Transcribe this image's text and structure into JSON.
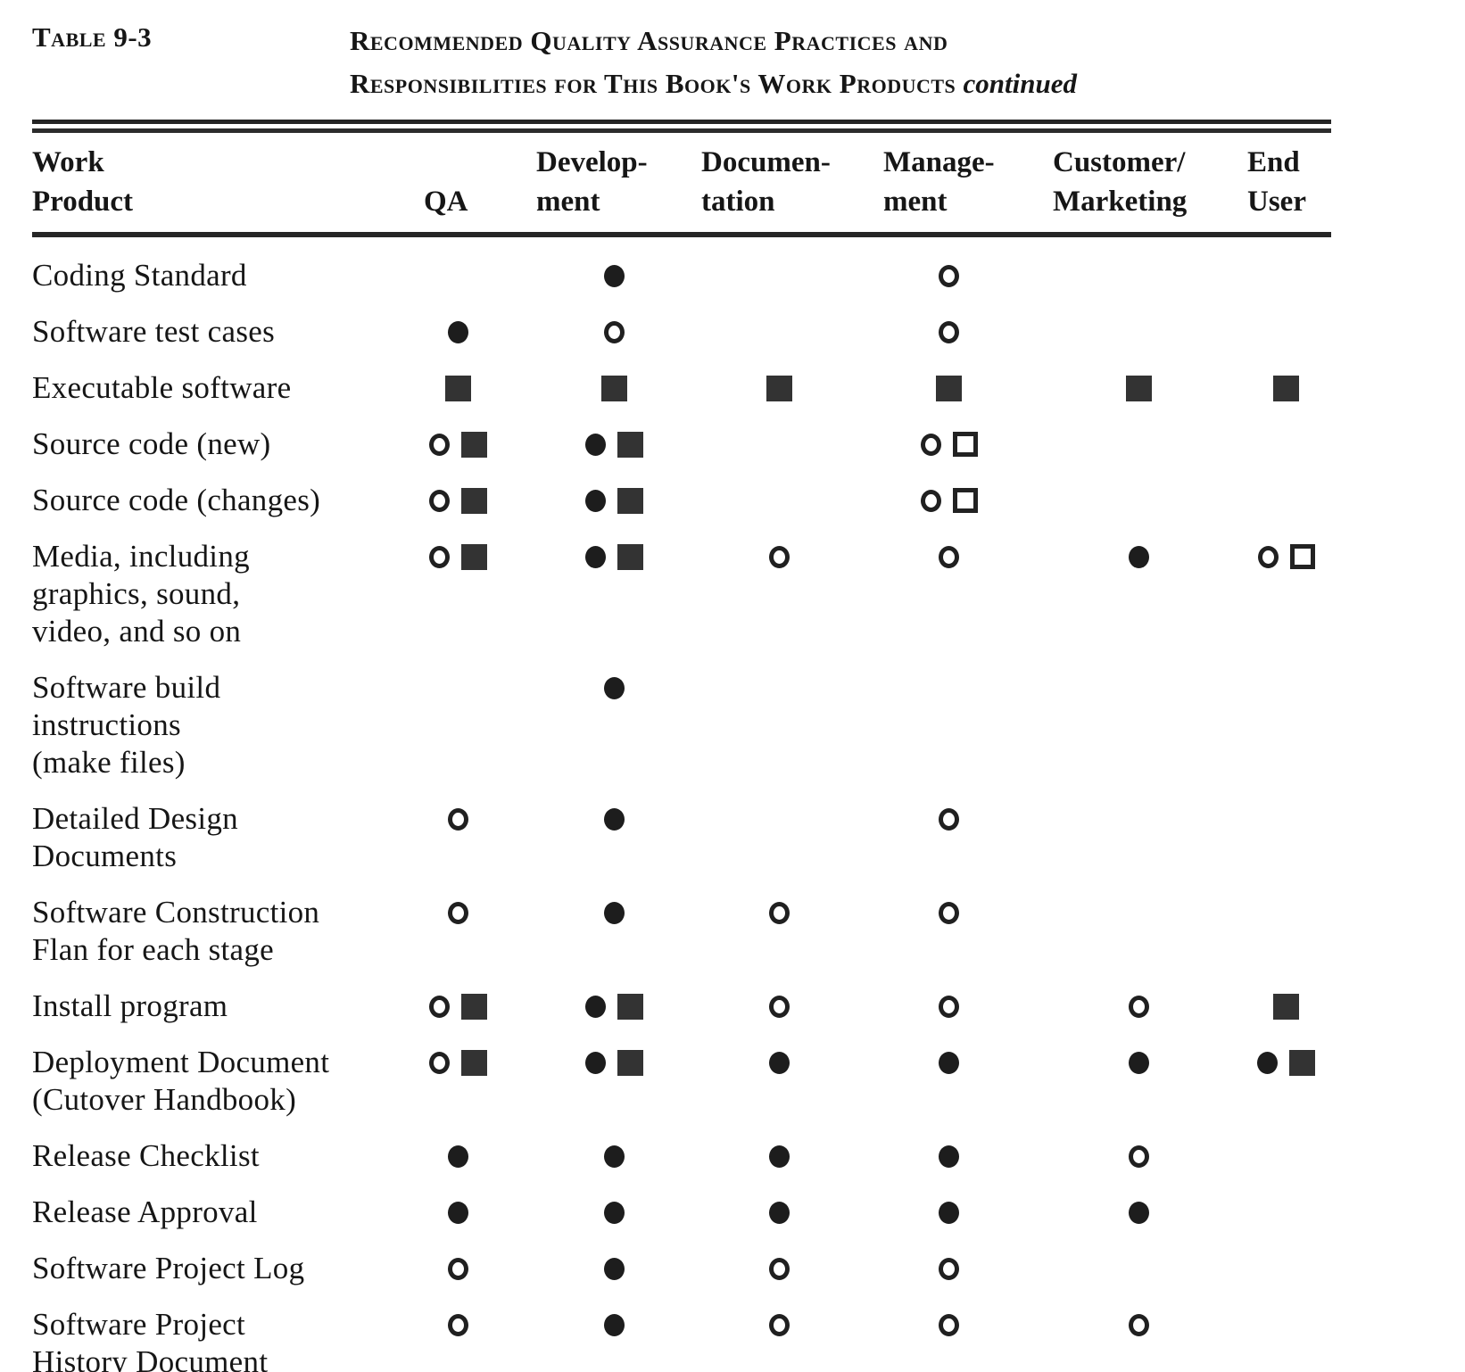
{
  "page": {
    "table_label": "Table 9-3",
    "title_line1": "Recommended Quality Assurance Practices and",
    "title_line2": "Responsibilities for This Book's Work Products",
    "title_emphasis": "continued"
  },
  "table": {
    "headers": [
      {
        "id": "work-product",
        "label": "Work\nProduct"
      },
      {
        "id": "qa",
        "label": "QA"
      },
      {
        "id": "development",
        "label": "Develop-\nment"
      },
      {
        "id": "documentation",
        "label": "Documen-\ntation"
      },
      {
        "id": "management",
        "label": "Manage-\nment"
      },
      {
        "id": "customer-marketing",
        "label": "Customer/\nMarketing"
      },
      {
        "id": "end-user",
        "label": "End\nUser"
      }
    ],
    "symbol_legend": {
      "filled-circle": "●",
      "open-circle": "○",
      "filled-square": "■",
      "open-square": "□"
    },
    "rows": [
      {
        "work_product": "Coding Standard",
        "cells": [
          [],
          [
            "filled-circle"
          ],
          [],
          [
            "open-circle"
          ],
          [],
          []
        ]
      },
      {
        "work_product": "Software test cases",
        "cells": [
          [
            "filled-circle"
          ],
          [
            "open-circle"
          ],
          [],
          [
            "open-circle"
          ],
          [],
          []
        ]
      },
      {
        "work_product": "Executable software",
        "cells": [
          [
            "filled-square"
          ],
          [
            "filled-square"
          ],
          [
            "filled-square"
          ],
          [
            "filled-square"
          ],
          [
            "filled-square"
          ],
          [
            "filled-square"
          ]
        ]
      },
      {
        "work_product": "Source code (new)",
        "cells": [
          [
            "open-circle",
            "filled-square"
          ],
          [
            "filled-circle",
            "filled-square"
          ],
          [],
          [
            "open-circle",
            "open-square"
          ],
          [],
          []
        ]
      },
      {
        "work_product": "Source code (changes)",
        "cells": [
          [
            "open-circle",
            "filled-square"
          ],
          [
            "filled-circle",
            "filled-square"
          ],
          [],
          [
            "open-circle",
            "open-square"
          ],
          [],
          []
        ]
      },
      {
        "work_product": "Media, including\ngraphics, sound,\nvideo, and so on",
        "cells": [
          [
            "open-circle",
            "filled-square"
          ],
          [
            "filled-circle",
            "filled-square"
          ],
          [
            "open-circle"
          ],
          [
            "open-circle"
          ],
          [
            "filled-circle"
          ],
          [
            "open-circle",
            "open-square"
          ]
        ]
      },
      {
        "work_product": "Software  build\ninstructions\n(make files)",
        "cells": [
          [],
          [
            "filled-circle"
          ],
          [],
          [],
          [],
          []
        ]
      },
      {
        "work_product": "Detailed Design\nDocuments",
        "cells": [
          [
            "open-circle"
          ],
          [
            "filled-circle"
          ],
          [],
          [
            "open-circle"
          ],
          [],
          []
        ]
      },
      {
        "work_product": "Software  Construction\nFlan for each stage",
        "cells": [
          [
            "open-circle"
          ],
          [
            "filled-circle"
          ],
          [
            "open-circle"
          ],
          [
            "open-circle"
          ],
          [],
          []
        ]
      },
      {
        "work_product": "Install program",
        "cells": [
          [
            "open-circle",
            "filled-square"
          ],
          [
            "filled-circle",
            "filled-square"
          ],
          [
            "open-circle"
          ],
          [
            "open-circle"
          ],
          [
            "open-circle"
          ],
          [
            "filled-square"
          ]
        ]
      },
      {
        "work_product": "Deployment Document\n(Cutover  Handbook)",
        "cells": [
          [
            "open-circle",
            "filled-square"
          ],
          [
            "filled-circle",
            "filled-square"
          ],
          [
            "filled-circle"
          ],
          [
            "filled-circle"
          ],
          [
            "filled-circle"
          ],
          [
            "filled-circle",
            "filled-square"
          ]
        ]
      },
      {
        "work_product": "Release  Checklist",
        "cells": [
          [
            "filled-circle"
          ],
          [
            "filled-circle"
          ],
          [
            "filled-circle"
          ],
          [
            "filled-circle"
          ],
          [
            "open-circle"
          ],
          []
        ]
      },
      {
        "work_product": "Release  Approval",
        "cells": [
          [
            "filled-circle"
          ],
          [
            "filled-circle"
          ],
          [
            "filled-circle"
          ],
          [
            "filled-circle"
          ],
          [
            "filled-circle"
          ],
          []
        ]
      },
      {
        "work_product": "Software Project Log",
        "cells": [
          [
            "open-circle"
          ],
          [
            "filled-circle"
          ],
          [
            "open-circle"
          ],
          [
            "open-circle"
          ],
          [],
          []
        ]
      },
      {
        "work_product": "Software Project\nHistory Document",
        "cells": [
          [
            "open-circle"
          ],
          [
            "filled-circle"
          ],
          [
            "open-circle"
          ],
          [
            "open-circle"
          ],
          [
            "open-circle"
          ],
          []
        ]
      }
    ]
  }
}
